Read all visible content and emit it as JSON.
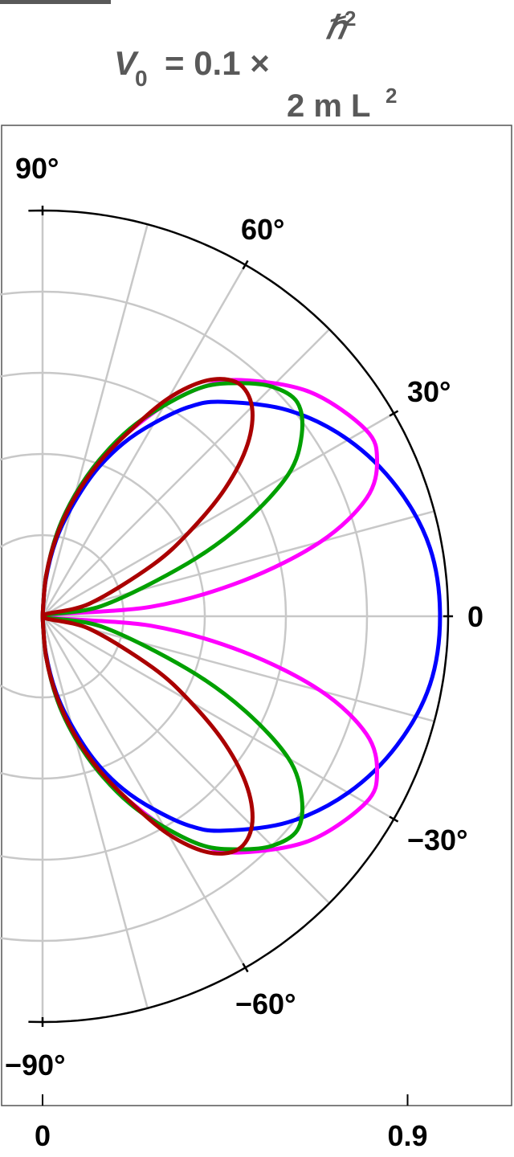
{
  "title": {
    "variable": "V",
    "subscript": "0",
    "equals": "= 0.1 ×",
    "numerator": "ℏ",
    "numerator_exp": "2",
    "denominator": "2 m L",
    "denominator_exp": "2"
  },
  "chart_data": {
    "type": "polar",
    "title": "V₀ = 0.1 × ℏ² / (2 m L²)",
    "angle_range_deg": [
      -90,
      90
    ],
    "angle_ticks": [
      {
        "deg": 90,
        "label": "90°"
      },
      {
        "deg": 60,
        "label": "60°"
      },
      {
        "deg": 30,
        "label": "30°"
      },
      {
        "deg": 0,
        "label": "0"
      },
      {
        "deg": -30,
        "label": "−30°"
      },
      {
        "deg": -60,
        "label": "−60°"
      },
      {
        "deg": -90,
        "label": "−90°"
      }
    ],
    "radial_ticks": [
      {
        "value": 0,
        "label": "0"
      },
      {
        "value": 0.9,
        "label": "0.9"
      }
    ],
    "radial_range": [
      0,
      1.0
    ],
    "grid_radii": [
      0.2,
      0.4,
      0.6,
      0.8
    ],
    "grid_angles_deg": [
      -75,
      -60,
      -45,
      -30,
      -15,
      0,
      15,
      30,
      45,
      60,
      75
    ],
    "outer_radius": 1.0,
    "grid": true,
    "series": [
      {
        "color": "#0000ff",
        "width": 5,
        "points": [
          [
            0,
            0.98
          ],
          [
            10,
            0.97
          ],
          [
            20,
            0.93
          ],
          [
            30,
            0.87
          ],
          [
            40,
            0.79
          ],
          [
            50,
            0.69
          ],
          [
            55,
            0.63
          ],
          [
            60,
            0.55
          ],
          [
            65,
            0.47
          ],
          [
            70,
            0.38
          ],
          [
            75,
            0.28
          ],
          [
            80,
            0.19
          ],
          [
            85,
            0.09
          ],
          [
            90,
            0.0
          ]
        ]
      },
      {
        "color": "#ff00ff",
        "width": 5,
        "points": [
          [
            0,
            0.0
          ],
          [
            5,
            0.27
          ],
          [
            10,
            0.5
          ],
          [
            15,
            0.71
          ],
          [
            20,
            0.85
          ],
          [
            25,
            0.91
          ],
          [
            30,
            0.92
          ],
          [
            40,
            0.86
          ],
          [
            50,
            0.76
          ],
          [
            55,
            0.69
          ],
          [
            60,
            0.6
          ],
          [
            65,
            0.5
          ],
          [
            70,
            0.41
          ],
          [
            75,
            0.31
          ],
          [
            80,
            0.21
          ],
          [
            85,
            0.1
          ],
          [
            90,
            0.0
          ]
        ]
      },
      {
        "color": "#00a000",
        "width": 5,
        "points": [
          [
            0,
            0.0
          ],
          [
            10,
            0.15
          ],
          [
            20,
            0.38
          ],
          [
            25,
            0.55
          ],
          [
            30,
            0.7
          ],
          [
            35,
            0.78
          ],
          [
            40,
            0.82
          ],
          [
            45,
            0.8
          ],
          [
            50,
            0.75
          ],
          [
            55,
            0.69
          ],
          [
            60,
            0.6
          ],
          [
            65,
            0.51
          ],
          [
            70,
            0.41
          ],
          [
            75,
            0.31
          ],
          [
            80,
            0.21
          ],
          [
            85,
            0.1
          ],
          [
            90,
            0.0
          ]
        ]
      },
      {
        "color": "#aa0000",
        "width": 5,
        "points": [
          [
            0,
            0.0
          ],
          [
            15,
            0.12
          ],
          [
            25,
            0.3
          ],
          [
            30,
            0.42
          ],
          [
            35,
            0.55
          ],
          [
            40,
            0.66
          ],
          [
            45,
            0.73
          ],
          [
            50,
            0.75
          ],
          [
            55,
            0.71
          ],
          [
            60,
            0.62
          ],
          [
            65,
            0.5
          ],
          [
            70,
            0.4
          ],
          [
            75,
            0.3
          ],
          [
            80,
            0.2
          ],
          [
            85,
            0.1
          ],
          [
            90,
            0.0
          ]
        ]
      }
    ]
  }
}
